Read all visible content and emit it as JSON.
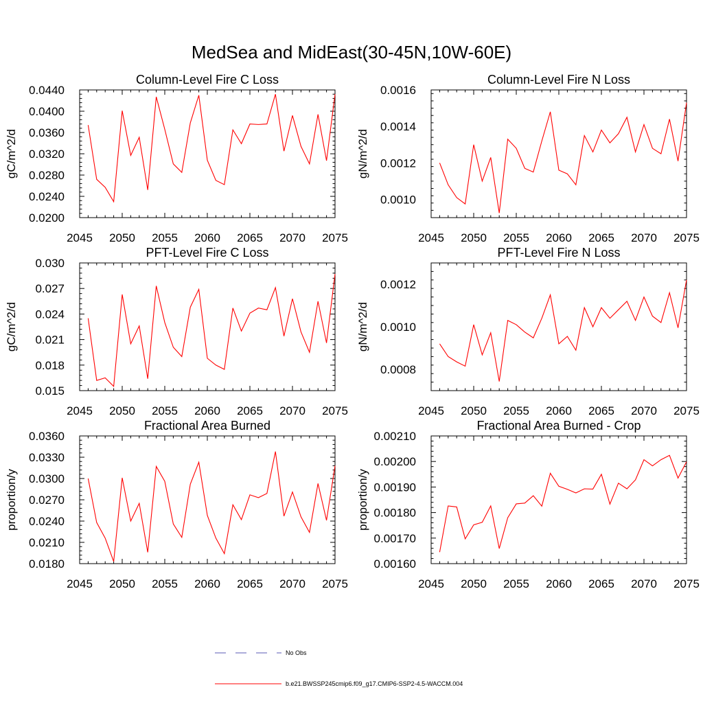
{
  "figure": {
    "title": "MedSea and MidEast(30-45N,10W-60E)"
  },
  "colors": {
    "model_line": "#ff0000",
    "obs_line": "#5a5ab4",
    "axis": "#000000"
  },
  "legend": {
    "obs_label": "No Obs",
    "model_label": "b.e21.BWSSP245cmip6.f09_g17.CMIP6-SSP2-4.5-WACCM.004"
  },
  "chart_data": [
    {
      "type": "line",
      "title": "Column-Level Fire C Loss",
      "ylabel": "gC/m^2/d",
      "xlabel": "",
      "xlim": [
        2045,
        2075
      ],
      "ylim": [
        0.02,
        0.044
      ],
      "xticks": [
        "2045",
        "2050",
        "2055",
        "2060",
        "2065",
        "2070",
        "2075"
      ],
      "yticks": [
        "0.0200",
        "0.0240",
        "0.0280",
        "0.0320",
        "0.0360",
        "0.0400",
        "0.0440"
      ],
      "x": [
        2046,
        2047,
        2048,
        2049,
        2050,
        2051,
        2052,
        2053,
        2054,
        2055,
        2056,
        2057,
        2058,
        2059,
        2060,
        2061,
        2062,
        2063,
        2064,
        2065,
        2066,
        2067,
        2068,
        2069,
        2070,
        2071,
        2072,
        2073,
        2074,
        2075
      ],
      "series": [
        {
          "name": "b.e21.BWSSP245cmip6.f09_g17.CMIP6-SSP2-4.5-WACCM.004",
          "values": [
            0.0374,
            0.0272,
            0.0257,
            0.023,
            0.0401,
            0.0317,
            0.0351,
            0.0252,
            0.0427,
            0.0366,
            0.0301,
            0.0285,
            0.0378,
            0.043,
            0.0308,
            0.027,
            0.0262,
            0.0365,
            0.0339,
            0.0376,
            0.0375,
            0.0376,
            0.0432,
            0.0325,
            0.0392,
            0.0334,
            0.0301,
            0.0394,
            0.0307,
            0.0432
          ]
        }
      ]
    },
    {
      "type": "line",
      "title": "Column-Level Fire N Loss",
      "ylabel": "gN/m^2/d",
      "xlabel": "",
      "xlim": [
        2045,
        2075
      ],
      "ylim": [
        0.0009,
        0.0016
      ],
      "xticks": [
        "2045",
        "2050",
        "2055",
        "2060",
        "2065",
        "2070",
        "2075"
      ],
      "yticks": [
        "0.0010",
        "0.0012",
        "0.0014",
        "0.0016"
      ],
      "x": [
        2046,
        2047,
        2048,
        2049,
        2050,
        2051,
        2052,
        2053,
        2054,
        2055,
        2056,
        2057,
        2058,
        2059,
        2060,
        2061,
        2062,
        2063,
        2064,
        2065,
        2066,
        2067,
        2068,
        2069,
        2070,
        2071,
        2072,
        2073,
        2074,
        2075
      ],
      "series": [
        {
          "name": "b.e21.BWSSP245cmip6.f09_g17.CMIP6-SSP2-4.5-WACCM.004",
          "values": [
            0.0012,
            0.00108,
            0.00101,
            0.000975,
            0.0013,
            0.0011,
            0.00123,
            0.000925,
            0.00133,
            0.00128,
            0.00117,
            0.00115,
            0.00132,
            0.00148,
            0.00116,
            0.00114,
            0.00108,
            0.00135,
            0.00126,
            0.00138,
            0.00131,
            0.00136,
            0.00145,
            0.00126,
            0.00141,
            0.00128,
            0.00125,
            0.00144,
            0.00121,
            0.00153
          ]
        }
      ]
    },
    {
      "type": "line",
      "title": "PFT-Level Fire C Loss",
      "ylabel": "gC/m^2/d",
      "xlabel": "",
      "xlim": [
        2045,
        2075
      ],
      "ylim": [
        0.015,
        0.03
      ],
      "xticks": [
        "2045",
        "2050",
        "2055",
        "2060",
        "2065",
        "2070",
        "2075"
      ],
      "yticks": [
        "0.015",
        "0.018",
        "0.021",
        "0.024",
        "0.027",
        "0.030"
      ],
      "x": [
        2046,
        2047,
        2048,
        2049,
        2050,
        2051,
        2052,
        2053,
        2054,
        2055,
        2056,
        2057,
        2058,
        2059,
        2060,
        2061,
        2062,
        2063,
        2064,
        2065,
        2066,
        2067,
        2068,
        2069,
        2070,
        2071,
        2072,
        2073,
        2074,
        2075
      ],
      "series": [
        {
          "name": "b.e21.BWSSP245cmip6.f09_g17.CMIP6-SSP2-4.5-WACCM.004",
          "values": [
            0.0235,
            0.0162,
            0.0165,
            0.0155,
            0.0263,
            0.0205,
            0.0226,
            0.0164,
            0.0273,
            0.023,
            0.0201,
            0.019,
            0.0248,
            0.0269,
            0.0188,
            0.018,
            0.0175,
            0.0247,
            0.022,
            0.0241,
            0.0247,
            0.0245,
            0.0271,
            0.0214,
            0.0258,
            0.0219,
            0.0195,
            0.0255,
            0.0206,
            0.0287
          ]
        }
      ]
    },
    {
      "type": "line",
      "title": "PFT-Level Fire N Loss",
      "ylabel": "gN/m^2/d",
      "xlabel": "",
      "xlim": [
        2045,
        2075
      ],
      "ylim": [
        0.0007,
        0.0013
      ],
      "xticks": [
        "2045",
        "2050",
        "2055",
        "2060",
        "2065",
        "2070",
        "2075"
      ],
      "yticks": [
        "0.0008",
        "0.0010",
        "0.0012"
      ],
      "x": [
        2046,
        2047,
        2048,
        2049,
        2050,
        2051,
        2052,
        2053,
        2054,
        2055,
        2056,
        2057,
        2058,
        2059,
        2060,
        2061,
        2062,
        2063,
        2064,
        2065,
        2066,
        2067,
        2068,
        2069,
        2070,
        2071,
        2072,
        2073,
        2074,
        2075
      ],
      "series": [
        {
          "name": "b.e21.BWSSP245cmip6.f09_g17.CMIP6-SSP2-4.5-WACCM.004",
          "values": [
            0.00092,
            0.00086,
            0.000835,
            0.000815,
            0.00101,
            0.000868,
            0.000972,
            0.000743,
            0.00103,
            0.00101,
            0.000975,
            0.000948,
            0.00104,
            0.00115,
            0.00092,
            0.000955,
            0.00089,
            0.00109,
            0.001,
            0.00109,
            0.00104,
            0.00108,
            0.00112,
            0.00103,
            0.00114,
            0.00105,
            0.00102,
            0.00116,
            0.000995,
            0.00122
          ]
        }
      ]
    },
    {
      "type": "line",
      "title": "Fractional Area Burned",
      "ylabel": "proportion/y",
      "xlabel": "",
      "xlim": [
        2045,
        2075
      ],
      "ylim": [
        0.018,
        0.036
      ],
      "xticks": [
        "2045",
        "2050",
        "2055",
        "2060",
        "2065",
        "2070",
        "2075"
      ],
      "yticks": [
        "0.0180",
        "0.0210",
        "0.0240",
        "0.0270",
        "0.0300",
        "0.0330",
        "0.0360"
      ],
      "x": [
        2046,
        2047,
        2048,
        2049,
        2050,
        2051,
        2052,
        2053,
        2054,
        2055,
        2056,
        2057,
        2058,
        2059,
        2060,
        2061,
        2062,
        2063,
        2064,
        2065,
        2066,
        2067,
        2068,
        2069,
        2070,
        2071,
        2072,
        2073,
        2074,
        2075
      ],
      "series": [
        {
          "name": "b.e21.BWSSP245cmip6.f09_g17.CMIP6-SSP2-4.5-WACCM.004",
          "values": [
            0.03,
            0.0238,
            0.0216,
            0.0183,
            0.0301,
            0.024,
            0.0265,
            0.0196,
            0.0317,
            0.0296,
            0.0236,
            0.0217,
            0.0292,
            0.0323,
            0.0248,
            0.0216,
            0.0194,
            0.0263,
            0.0242,
            0.0277,
            0.0273,
            0.0279,
            0.0338,
            0.0247,
            0.0281,
            0.0246,
            0.0224,
            0.0293,
            0.0241,
            0.0318
          ]
        }
      ]
    },
    {
      "type": "line",
      "title": "Fractional Area Burned - Crop",
      "ylabel": "proportion/y",
      "xlabel": "",
      "xlim": [
        2045,
        2075
      ],
      "ylim": [
        0.0016,
        0.0021
      ],
      "xticks": [
        "2045",
        "2050",
        "2055",
        "2060",
        "2065",
        "2070",
        "2075"
      ],
      "yticks": [
        "0.00160",
        "0.00170",
        "0.00180",
        "0.00190",
        "0.00200",
        "0.00210"
      ],
      "x": [
        2046,
        2047,
        2048,
        2049,
        2050,
        2051,
        2052,
        2053,
        2054,
        2055,
        2056,
        2057,
        2058,
        2059,
        2060,
        2061,
        2062,
        2063,
        2064,
        2065,
        2066,
        2067,
        2068,
        2069,
        2070,
        2071,
        2072,
        2073,
        2074,
        2075
      ],
      "series": [
        {
          "name": "b.e21.BWSSP245cmip6.f09_g17.CMIP6-SSP2-4.5-WACCM.004",
          "values": [
            0.001645,
            0.001826,
            0.001822,
            0.001697,
            0.001752,
            0.001762,
            0.001826,
            0.001659,
            0.00178,
            0.001834,
            0.001837,
            0.001866,
            0.001825,
            0.001954,
            0.001903,
            0.001891,
            0.001877,
            0.001893,
            0.001892,
            0.00195,
            0.001833,
            0.001915,
            0.001893,
            0.001928,
            0.002007,
            0.001983,
            0.002007,
            0.002024,
            0.001935,
            0.001999
          ]
        }
      ]
    }
  ]
}
